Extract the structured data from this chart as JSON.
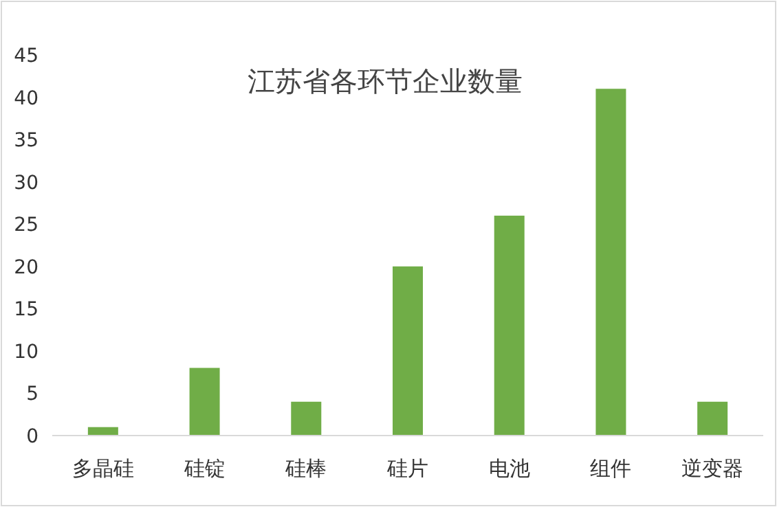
{
  "chart_data": {
    "type": "bar",
    "title": "江苏省各环节企业数量",
    "categories": [
      "多晶硅",
      "硅锭",
      "硅棒",
      "硅片",
      "电池",
      "组件",
      "逆变器"
    ],
    "values": [
      1,
      8,
      4,
      20,
      26,
      41,
      4
    ],
    "color": "#70ad47",
    "ylim": [
      0,
      45
    ],
    "yticks": [
      0,
      5,
      10,
      15,
      20,
      25,
      30,
      35,
      40,
      45
    ]
  }
}
